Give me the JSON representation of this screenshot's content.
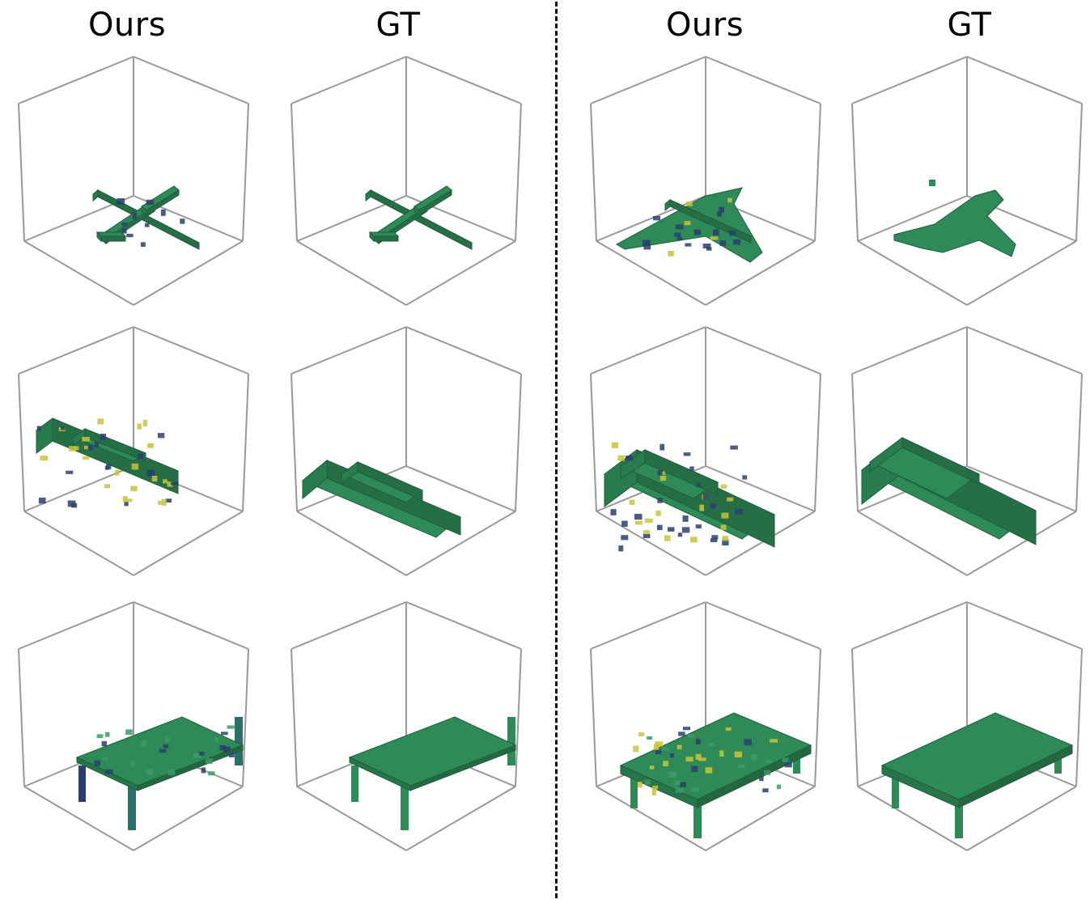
{
  "columns": [
    {
      "label": "Ours"
    },
    {
      "label": "GT"
    },
    {
      "label": "Ours"
    },
    {
      "label": "GT"
    }
  ],
  "rows": [
    {
      "object": "airplane"
    },
    {
      "object": "car"
    },
    {
      "object": "table"
    }
  ],
  "colors": {
    "voxel_green": "#2e8a57",
    "voxel_dark": "#2a3f6e",
    "voxel_yellow": "#c8c43a",
    "box_line": "#999999"
  }
}
